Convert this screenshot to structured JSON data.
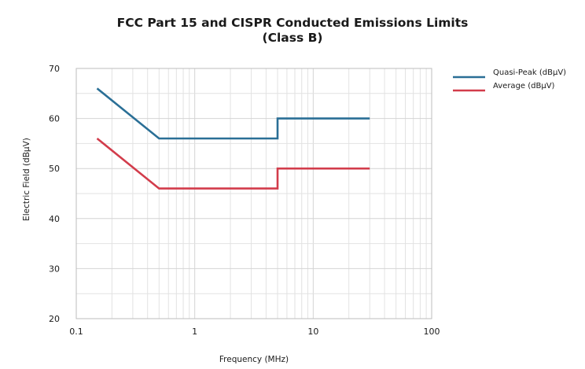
{
  "chart_data": {
    "type": "line",
    "title": "FCC Part 15 and CISPR Conducted Emissions Limits",
    "subtitle": "(Class B)",
    "xlabel": "Frequency (MHz)",
    "ylabel": "Electric Field (dBµV)",
    "xscale": "log",
    "xlim": [
      0.1,
      100
    ],
    "ylim": [
      20,
      70
    ],
    "xticks": [
      "0.1",
      "1",
      "10",
      "100"
    ],
    "yticks": [
      "20",
      "30",
      "40",
      "50",
      "60",
      "70"
    ],
    "grid": true,
    "legend_position": "right",
    "series": [
      {
        "name": "Quasi-Peak (dBµV)",
        "color": "#2a6f96",
        "x": [
          0.15,
          0.5,
          5,
          5,
          30
        ],
        "y": [
          66,
          56,
          56,
          60,
          60
        ]
      },
      {
        "name": "Average (dBµV)",
        "color": "#d23c4b",
        "x": [
          0.15,
          0.5,
          5,
          5,
          30
        ],
        "y": [
          56,
          46,
          46,
          50,
          50
        ]
      }
    ]
  }
}
